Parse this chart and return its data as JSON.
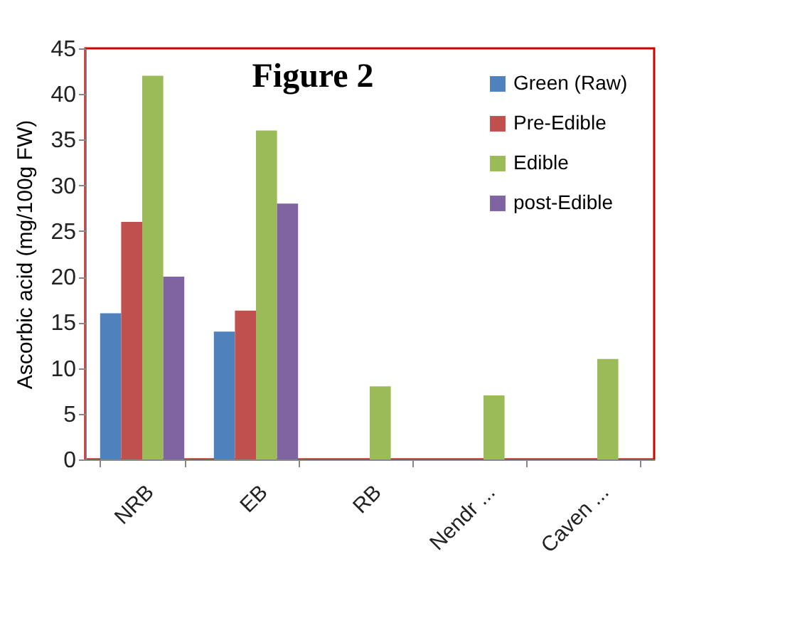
{
  "chart_data": {
    "type": "bar",
    "title": "Figure 2",
    "ylabel": "Ascorbic acid  (mg/100g FW)",
    "categories": [
      "NRB",
      "EB",
      "RB",
      "Nendr ...",
      "Caven ..."
    ],
    "series": [
      {
        "name": "Green (Raw)",
        "color": "#4f81bd",
        "values": [
          16,
          14,
          null,
          null,
          null
        ]
      },
      {
        "name": "Pre-Edible",
        "color": "#c0504d",
        "values": [
          26,
          16.3,
          null,
          null,
          null
        ]
      },
      {
        "name": "Edible",
        "color": "#9bbb59",
        "values": [
          42,
          36,
          8,
          7,
          11
        ]
      },
      {
        "name": "post-Edible",
        "color": "#8064a2",
        "values": [
          20,
          28,
          null,
          null,
          null
        ]
      }
    ],
    "ylim": [
      0,
      45
    ],
    "yticks": [
      0,
      5,
      10,
      15,
      20,
      25,
      30,
      35,
      40,
      45
    ],
    "grid": false,
    "legend": "top right"
  }
}
